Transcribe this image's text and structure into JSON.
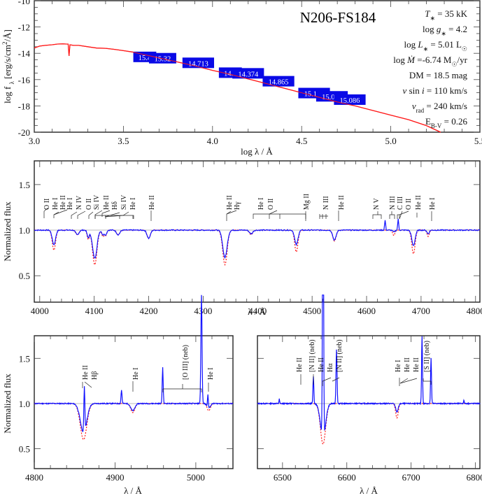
{
  "colors": {
    "model": "#ff1a1a",
    "observed": "#1010ff",
    "phot_box": "#0a0ae6",
    "continuum": "#bbbbbb"
  },
  "chart_data": [
    {
      "type": "line",
      "panel": "sed",
      "title": "N206-FS184",
      "xlabel": "log λ / Å",
      "ylabel": "log f_λ [erg/s/cm²/Å]",
      "xlim": [
        3.0,
        5.5
      ],
      "ylim": [
        -20,
        -10
      ],
      "xticks": [
        "3.0",
        "3.5",
        "4.0",
        "4.5",
        "5.0",
        "5.5"
      ],
      "yticks": [
        "-10",
        "-12",
        "-14",
        "-16",
        "-18",
        "-20"
      ],
      "model_sed": {
        "x": [
          3.0,
          3.03,
          3.06,
          3.1,
          3.13,
          3.16,
          3.18,
          3.19,
          3.195,
          3.2,
          3.22,
          3.25,
          3.3,
          3.35,
          3.4,
          3.45,
          3.5,
          3.55,
          3.6,
          3.7,
          3.8,
          3.9,
          4.0,
          4.1,
          4.2,
          4.3,
          4.4,
          4.5,
          4.6,
          4.7,
          4.8,
          4.9,
          5.0,
          5.1,
          5.2,
          5.28
        ],
        "y": [
          -13.6,
          -13.45,
          -13.4,
          -13.35,
          -13.3,
          -13.28,
          -13.3,
          -13.3,
          -14.2,
          -13.35,
          -13.4,
          -13.4,
          -13.5,
          -13.6,
          -13.62,
          -13.7,
          -13.8,
          -13.9,
          -14.05,
          -14.35,
          -14.65,
          -14.95,
          -15.3,
          -15.6,
          -15.95,
          -16.3,
          -16.65,
          -17.0,
          -17.35,
          -17.7,
          -18.0,
          -18.35,
          -18.7,
          -19.05,
          -19.5,
          -20.0
        ]
      },
      "photometry": [
        {
          "label": "15.4",
          "logx": 3.62,
          "y": -14.3
        },
        {
          "label": "15.32",
          "logx": 3.72,
          "y": -14.4
        },
        {
          "label": "14.713",
          "logx": 3.92,
          "y": -14.75
        },
        {
          "label": "14.9",
          "logx": 4.1,
          "y": -15.5
        },
        {
          "label": "14.374",
          "logx": 4.2,
          "y": -15.55
        },
        {
          "label": "14.865",
          "logx": 4.37,
          "y": -16.15
        },
        {
          "label": "15.127",
          "logx": 4.57,
          "y": -17.05
        },
        {
          "label": "15.086",
          "logx": 4.67,
          "y": -17.3
        },
        {
          "label": "15.086",
          "logx": 4.77,
          "y": -17.55
        }
      ],
      "parameters": [
        {
          "label": "T_* = 35 kK"
        },
        {
          "label": "log g_* = 4.2"
        },
        {
          "label": "log L_* = 5.01 L☉"
        },
        {
          "label": "log Ṁ = -6.74 M☉/yr"
        },
        {
          "label": "DM = 18.5 mag"
        },
        {
          "label": "v sin i = 110 km/s"
        },
        {
          "label": "v_rad = 240 km/s"
        },
        {
          "label": "E_B-V = 0.26"
        }
      ]
    },
    {
      "type": "line",
      "panel": "blue-spectrum",
      "xlabel": "λ / Å",
      "ylabel": "Normalized flux",
      "xlim": [
        3990,
        4808
      ],
      "ylim": [
        0.21,
        1.76
      ],
      "xticks": [
        "4000",
        "4100",
        "4200",
        "4300",
        "4400",
        "4500",
        "4600",
        "4700",
        "4800"
      ],
      "yticks": [
        "0.5",
        "1.0",
        "1.5"
      ],
      "lines": [
        {
          "center": 4026,
          "depth_obs": 0.16,
          "depth_mod": 0.22,
          "width": 3
        },
        {
          "center": 4069,
          "depth_obs": 0.05,
          "depth_mod": 0.05,
          "width": 3
        },
        {
          "center": 4089,
          "depth_obs": 0.08,
          "depth_mod": 0.1,
          "width": 2
        },
        {
          "center": 4101,
          "depth_obs": 0.31,
          "depth_mod": 0.38,
          "width": 4
        },
        {
          "center": 4116,
          "depth_obs": 0.05,
          "depth_mod": 0.07,
          "width": 2
        },
        {
          "center": 4121,
          "depth_obs": 0.05,
          "depth_mod": 0.06,
          "width": 2
        },
        {
          "center": 4144,
          "depth_obs": 0.05,
          "depth_mod": 0.05,
          "width": 3
        },
        {
          "center": 4200,
          "depth_obs": 0.09,
          "depth_mod": 0.09,
          "width": 3
        },
        {
          "center": 4340,
          "depth_obs": 0.3,
          "depth_mod": 0.38,
          "width": 4
        },
        {
          "center": 4388,
          "depth_obs": 0.04,
          "depth_mod": 0.05,
          "width": 3
        },
        {
          "center": 4471,
          "depth_obs": 0.16,
          "depth_mod": 0.24,
          "width": 3
        },
        {
          "center": 4541,
          "depth_obs": 0.11,
          "depth_mod": 0.12,
          "width": 3
        },
        {
          "center": 4634,
          "depth_obs": -0.05,
          "depth_mod": 0.0,
          "width": 1
        },
        {
          "center": 4650,
          "depth_obs": 0.02,
          "depth_mod": 0.06,
          "width": 2
        },
        {
          "center": 4658,
          "depth_obs": -0.06,
          "depth_mod": 0.0,
          "width": 1
        },
        {
          "center": 4686,
          "depth_obs": 0.17,
          "depth_mod": 0.26,
          "width": 3
        },
        {
          "center": 4713,
          "depth_obs": 0.04,
          "depth_mod": 0.07,
          "width": 2
        }
      ],
      "identifications": [
        {
          "label": "O II",
          "x": 4010
        },
        {
          "label": "He I",
          "x": 4026
        },
        {
          "label": "He II",
          "x": 4026
        },
        {
          "label": "He I",
          "x": 4058
        },
        {
          "label": "N IV",
          "x": 4070
        },
        {
          "label": "O II",
          "x": 4089
        },
        {
          "label": "Si IV",
          "x": 4100
        },
        {
          "label": "He II",
          "x": 4116
        },
        {
          "label": "Hδ",
          "x": 4121
        },
        {
          "label": "Si IV",
          "x": 4144
        },
        {
          "label": "He I",
          "x": 4167
        },
        {
          "label": "He II",
          "x": 4200
        },
        {
          "label": "He II",
          "x": 4340
        },
        {
          "label": "Hγ",
          "x": 4340
        },
        {
          "label": "He I",
          "x": 4387
        },
        {
          "label": "O II",
          "x": 4415
        },
        {
          "label": "Mg II",
          "x": 4481
        },
        {
          "label": "N III",
          "x": 4515
        },
        {
          "label": "He II",
          "x": 4541
        },
        {
          "label": "N V",
          "x": 4610
        },
        {
          "label": "N III",
          "x": 4640
        },
        {
          "label": "C III",
          "x": 4650
        },
        {
          "label": "O II",
          "x": 4661
        },
        {
          "label": "He II",
          "x": 4686
        },
        {
          "label": "He I",
          "x": 4713
        }
      ]
    },
    {
      "type": "line",
      "panel": "hbeta-spectrum",
      "xlabel": "λ / Å",
      "ylabel": "Normalized flux",
      "xlim": [
        4800,
        5046
      ],
      "ylim": [
        0.28,
        1.75
      ],
      "xticks": [
        "4800",
        "4900",
        "5000"
      ],
      "yticks": [
        "0.5",
        "1.0",
        "1.5"
      ],
      "identifications": [
        {
          "label": "He II",
          "x": 4859
        },
        {
          "label": "Hβ",
          "x": 4861
        },
        {
          "label": "He I",
          "x": 4922
        },
        {
          "label": "[O III] (neb)",
          "x": 4983
        },
        {
          "label": "He I",
          "x": 5016
        }
      ]
    },
    {
      "type": "line",
      "panel": "halpha-spectrum",
      "xlabel": "λ / Å",
      "ylabel": "",
      "xlim": [
        6461,
        6807
      ],
      "ylim": [
        0.28,
        1.75
      ],
      "xticks": [
        "6500",
        "6600",
        "6700",
        "6800"
      ],
      "yticks": [],
      "identifications": [
        {
          "label": "He II",
          "x": 6527
        },
        {
          "label": "[N II] (neb)",
          "x": 6548
        },
        {
          "label": "He II",
          "x": 6560
        },
        {
          "label": "Hα",
          "x": 6563
        },
        {
          "label": "[N II] (neb)",
          "x": 6584
        },
        {
          "label": "He I",
          "x": 6678
        },
        {
          "label": "He II",
          "x": 6683
        },
        {
          "label": "He II",
          "x": 6890
        },
        {
          "label": "[S II] (neb)",
          "x": 6724
        }
      ]
    }
  ],
  "sed": {
    "title": "N206-FS184",
    "xlabel": "log λ / Å",
    "ylabel_main": "log f",
    "ylabel_sub": "λ",
    "ylabel_rest": " [erg/s/cm",
    "ylabel_sup": "2",
    "ylabel_end": "/Å]",
    "params": {
      "t": "= 35 kK",
      "g": "=  4.2",
      "l": "= 5.01 L",
      "mdot": "=-6.74 M",
      "mdot_unit": "/yr",
      "dm": "DM = 18.5 mag",
      "vsini": "= 110 km/s",
      "vrad": "= 240 km/s",
      "ebv": "= 0.26"
    }
  },
  "spectra": {
    "ylabel": "Normalized flux",
    "xlabel": "λ / Å"
  }
}
